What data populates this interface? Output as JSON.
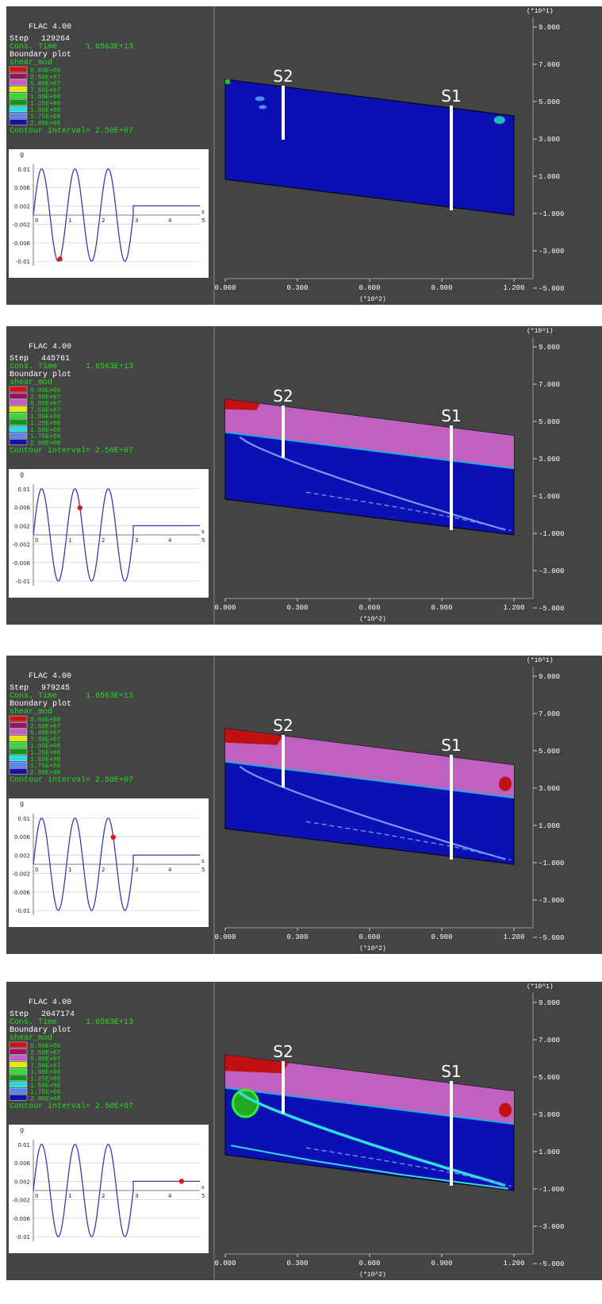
{
  "colors": {
    "panel_bg": "#444444",
    "text_white": "#ffffff",
    "text_green": "#22dd22",
    "model_blue": "#0a10b4",
    "soft_layer": "#c060c0",
    "red_zone": "#c01010",
    "wave_line": "#3a3aa8",
    "marker": "#e01818"
  },
  "header": {
    "title": "FLAC 4.00",
    "step_label": "Step",
    "cons_label": "Cons. Time",
    "cons_value": "1.6563E+13",
    "boundary": "Boundary plot",
    "shear": "shear_mod",
    "contour": "Contour interval=  2.50E+07"
  },
  "legend": [
    {
      "label": "0.00E+00",
      "color": "#c81414"
    },
    {
      "label": "2.50E+07",
      "color": "#a01060"
    },
    {
      "label": "5.00E+07",
      "color": "#c060c0"
    },
    {
      "label": "7.50E+07",
      "color": "#e8e800"
    },
    {
      "label": "1.00E+08",
      "color": "#33dd33"
    },
    {
      "label": "1.25E+08",
      "color": "#119911"
    },
    {
      "label": "1.50E+08",
      "color": "#22dddd"
    },
    {
      "label": "1.75E+08",
      "color": "#5588ee"
    },
    {
      "label": "2.00E+08",
      "color": "#1111aa"
    }
  ],
  "inset": {
    "unit_y": "g",
    "unit_x": "s",
    "yticks": [
      "0.01",
      "0.006",
      "0.002",
      "-0.002",
      "-0.006",
      "-0.01"
    ],
    "xticks": [
      "0",
      "1",
      "2",
      "3",
      "4",
      "5"
    ]
  },
  "axes": {
    "y_multiplier": "(*10^1)",
    "yticks": [
      "9.000",
      "7.000",
      "5.000",
      "3.000",
      "1.000",
      "-1.000",
      "-3.000",
      "-5.000"
    ],
    "xticks": [
      "0.000",
      "0.300",
      "0.600",
      "0.900",
      "1.200"
    ],
    "x_multiplier": "(*10^2)"
  },
  "sections": {
    "s1": "S1",
    "s2": "S2"
  },
  "panels": [
    {
      "step": "129264",
      "time": 0.8
    },
    {
      "step": "445761",
      "time": 1.4
    },
    {
      "step": "979245",
      "time": 2.4
    },
    {
      "step": "2047174",
      "time": 4.45
    }
  ]
}
